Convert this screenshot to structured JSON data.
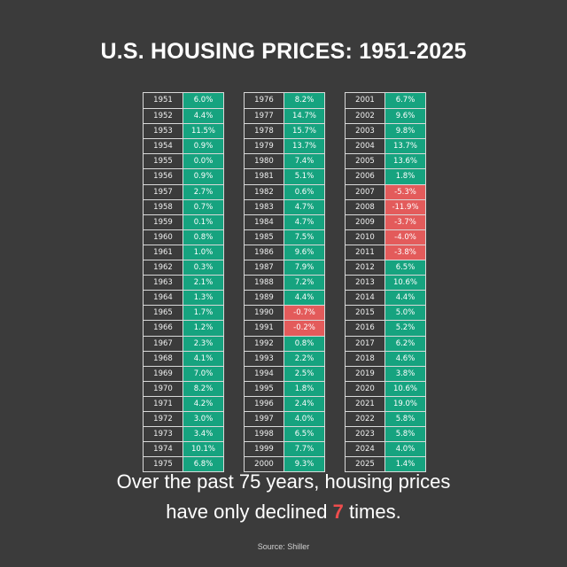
{
  "title": "U.S. HOUSING PRICES: 1951-2025",
  "caption": {
    "line1": "Over the past 75 years, housing prices",
    "line2_pre": "have only declined",
    "highlight": "7",
    "line2_post": "times."
  },
  "source": "Source: Shiller",
  "colors": {
    "positive": "#16a37f",
    "negative": "#e35b5b",
    "highlight": "#ee4d4d"
  },
  "chart_data": {
    "type": "table",
    "title": "U.S. HOUSING PRICES: 1951-2025",
    "columns": [
      [
        {
          "year": "1951",
          "change": "6.0%"
        },
        {
          "year": "1952",
          "change": "4.4%"
        },
        {
          "year": "1953",
          "change": "11.5%"
        },
        {
          "year": "1954",
          "change": "0.9%"
        },
        {
          "year": "1955",
          "change": "0.0%"
        },
        {
          "year": "1956",
          "change": "0.9%"
        },
        {
          "year": "1957",
          "change": "2.7%"
        },
        {
          "year": "1958",
          "change": "0.7%"
        },
        {
          "year": "1959",
          "change": "0.1%"
        },
        {
          "year": "1960",
          "change": "0.8%"
        },
        {
          "year": "1961",
          "change": "1.0%"
        },
        {
          "year": "1962",
          "change": "0.3%"
        },
        {
          "year": "1963",
          "change": "2.1%"
        },
        {
          "year": "1964",
          "change": "1.3%"
        },
        {
          "year": "1965",
          "change": "1.7%"
        },
        {
          "year": "1966",
          "change": "1.2%"
        },
        {
          "year": "1967",
          "change": "2.3%"
        },
        {
          "year": "1968",
          "change": "4.1%"
        },
        {
          "year": "1969",
          "change": "7.0%"
        },
        {
          "year": "1970",
          "change": "8.2%"
        },
        {
          "year": "1971",
          "change": "4.2%"
        },
        {
          "year": "1972",
          "change": "3.0%"
        },
        {
          "year": "1973",
          "change": "3.4%"
        },
        {
          "year": "1974",
          "change": "10.1%"
        },
        {
          "year": "1975",
          "change": "6.8%"
        }
      ],
      [
        {
          "year": "1976",
          "change": "8.2%"
        },
        {
          "year": "1977",
          "change": "14.7%"
        },
        {
          "year": "1978",
          "change": "15.7%"
        },
        {
          "year": "1979",
          "change": "13.7%"
        },
        {
          "year": "1980",
          "change": "7.4%"
        },
        {
          "year": "1981",
          "change": "5.1%"
        },
        {
          "year": "1982",
          "change": "0.6%"
        },
        {
          "year": "1983",
          "change": "4.7%"
        },
        {
          "year": "1984",
          "change": "4.7%"
        },
        {
          "year": "1985",
          "change": "7.5%"
        },
        {
          "year": "1986",
          "change": "9.6%"
        },
        {
          "year": "1987",
          "change": "7.9%"
        },
        {
          "year": "1988",
          "change": "7.2%"
        },
        {
          "year": "1989",
          "change": "4.4%"
        },
        {
          "year": "1990",
          "change": "-0.7%"
        },
        {
          "year": "1991",
          "change": "-0.2%"
        },
        {
          "year": "1992",
          "change": "0.8%"
        },
        {
          "year": "1993",
          "change": "2.2%"
        },
        {
          "year": "1994",
          "change": "2.5%"
        },
        {
          "year": "1995",
          "change": "1.8%"
        },
        {
          "year": "1996",
          "change": "2.4%"
        },
        {
          "year": "1997",
          "change": "4.0%"
        },
        {
          "year": "1998",
          "change": "6.5%"
        },
        {
          "year": "1999",
          "change": "7.7%"
        },
        {
          "year": "2000",
          "change": "9.3%"
        }
      ],
      [
        {
          "year": "2001",
          "change": "6.7%"
        },
        {
          "year": "2002",
          "change": "9.6%"
        },
        {
          "year": "2003",
          "change": "9.8%"
        },
        {
          "year": "2004",
          "change": "13.7%"
        },
        {
          "year": "2005",
          "change": "13.6%"
        },
        {
          "year": "2006",
          "change": "1.8%"
        },
        {
          "year": "2007",
          "change": "-5.3%"
        },
        {
          "year": "2008",
          "change": "-11.9%"
        },
        {
          "year": "2009",
          "change": "-3.7%"
        },
        {
          "year": "2010",
          "change": "-4.0%"
        },
        {
          "year": "2011",
          "change": "-3.8%"
        },
        {
          "year": "2012",
          "change": "6.5%"
        },
        {
          "year": "2013",
          "change": "10.6%"
        },
        {
          "year": "2014",
          "change": "4.4%"
        },
        {
          "year": "2015",
          "change": "5.0%"
        },
        {
          "year": "2016",
          "change": "5.2%"
        },
        {
          "year": "2017",
          "change": "6.2%"
        },
        {
          "year": "2018",
          "change": "4.6%"
        },
        {
          "year": "2019",
          "change": "3.8%"
        },
        {
          "year": "2020",
          "change": "10.6%"
        },
        {
          "year": "2021",
          "change": "19.0%"
        },
        {
          "year": "2022",
          "change": "5.8%"
        },
        {
          "year": "2023",
          "change": "5.8%"
        },
        {
          "year": "2024",
          "change": "4.0%"
        },
        {
          "year": "2025",
          "change": "1.4%"
        }
      ]
    ]
  }
}
